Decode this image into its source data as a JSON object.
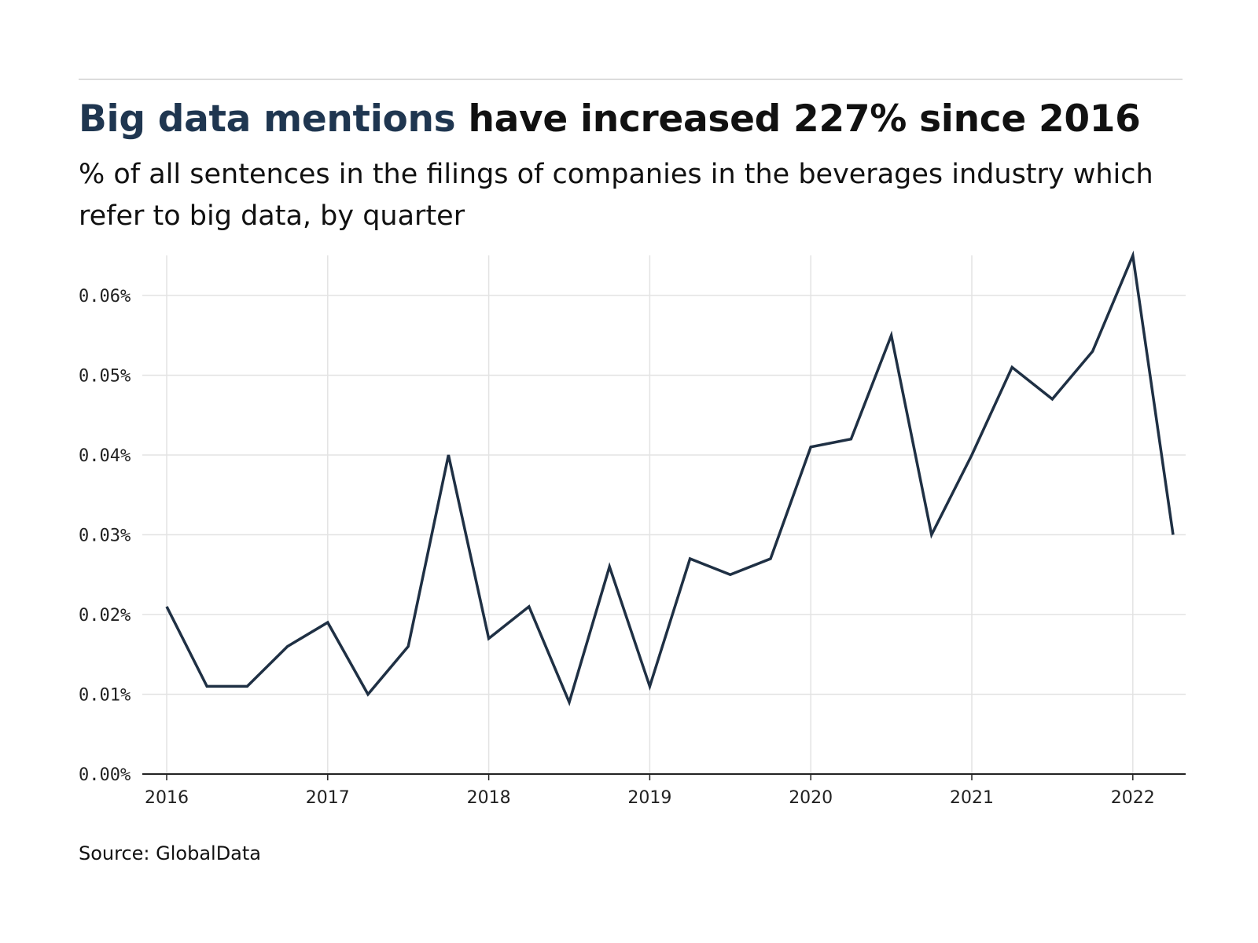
{
  "header": {
    "title_highlight": "Big data mentions",
    "title_rest": "have increased 227% since 2016",
    "subtitle": "% of all sentences in the filings of companies in the beverages industry which refer to big data, by quarter"
  },
  "footer": {
    "source": "Source: GlobalData"
  },
  "colors": {
    "line": "#1f3044",
    "highlight": "#1f3650",
    "grid": "#e3e3e3",
    "axis": "#222222"
  },
  "chart_data": {
    "type": "line",
    "title": "Big data mentions have increased 227% since 2016",
    "xlabel": "",
    "ylabel": "",
    "x": [
      "2016-Q1",
      "2016-Q2",
      "2016-Q3",
      "2016-Q4",
      "2017-Q1",
      "2017-Q2",
      "2017-Q3",
      "2017-Q4",
      "2018-Q1",
      "2018-Q2",
      "2018-Q3",
      "2018-Q4",
      "2019-Q1",
      "2019-Q2",
      "2019-Q3",
      "2019-Q4",
      "2020-Q1",
      "2020-Q2",
      "2020-Q3",
      "2020-Q4",
      "2021-Q1",
      "2021-Q2",
      "2021-Q3",
      "2021-Q4",
      "2022-Q1",
      "2022-Q2"
    ],
    "series": [
      {
        "name": "",
        "values": [
          0.021,
          0.011,
          0.011,
          0.016,
          0.019,
          0.01,
          0.016,
          0.04,
          0.017,
          0.021,
          0.009,
          0.026,
          0.011,
          0.027,
          0.025,
          0.027,
          0.041,
          0.042,
          0.055,
          0.03,
          0.04,
          0.051,
          0.047,
          0.053,
          0.065,
          0.03
        ]
      }
    ],
    "ylim": [
      0,
      0.065
    ],
    "y_ticks": [
      0.0,
      0.01,
      0.02,
      0.03,
      0.04,
      0.05,
      0.06
    ],
    "y_tick_labels": [
      "0.00%",
      "0.01%",
      "0.02%",
      "0.03%",
      "0.04%",
      "0.05%",
      "0.06%"
    ],
    "x_tick_labels": [
      "2016",
      "2017",
      "2018",
      "2019",
      "2020",
      "2021",
      "2022"
    ],
    "grid": true,
    "legend": "none"
  }
}
